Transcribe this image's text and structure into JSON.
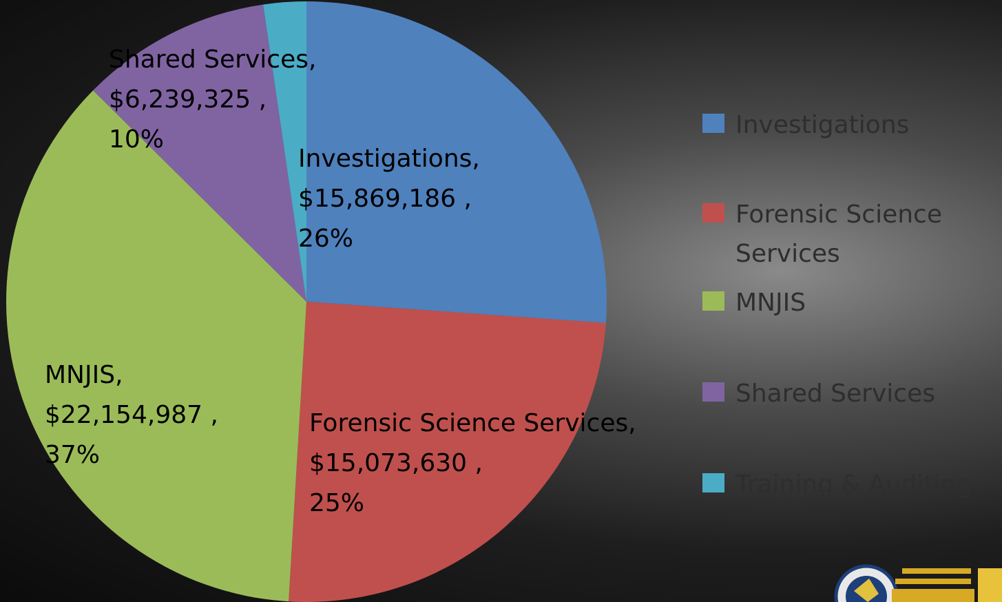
{
  "chart_data": {
    "type": "pie",
    "categories": [
      "Investigations",
      "Forensic Science Services",
      "MNJIS",
      "Shared Services",
      "Training & Auditing"
    ],
    "values": [
      15869186,
      15073630,
      22154987,
      6239325,
      1400000
    ],
    "colors": [
      "#4f81bd",
      "#c0504d",
      "#9bbb59",
      "#8064a2",
      "#4bacc6"
    ],
    "data_labels": [
      [
        "Investigations,",
        "$15,869,186 ,",
        "26%"
      ],
      [
        "Forensic Science Services,",
        "$15,073,630 ,",
        "25%"
      ],
      [
        "MNJIS,",
        "$22,154,987 ,",
        "37%"
      ],
      [
        "Shared Services,",
        "$6,239,325 ,",
        "10%"
      ],
      null
    ],
    "legend": "right"
  }
}
